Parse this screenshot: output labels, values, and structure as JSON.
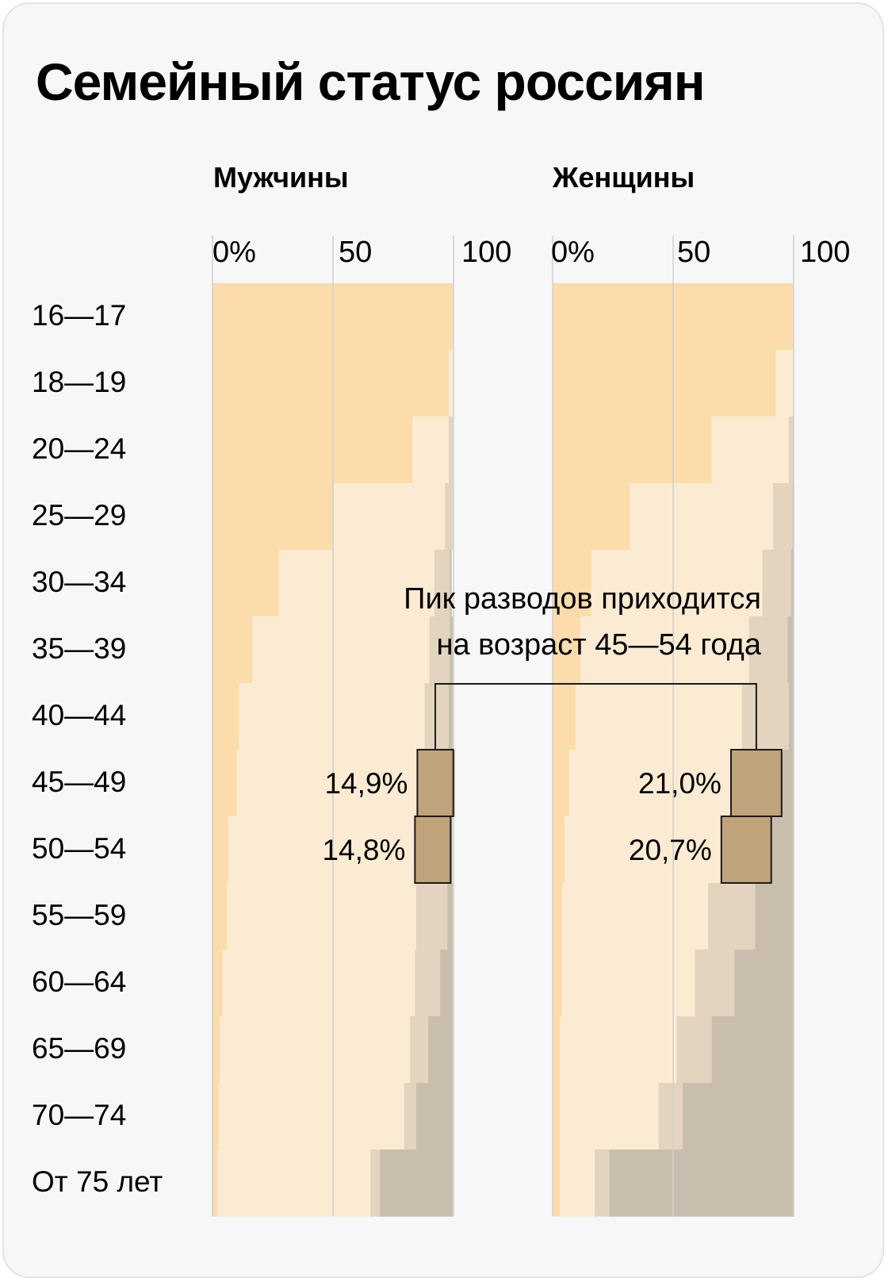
{
  "title": "Семейный статус россиян",
  "annotation": {
    "line1": "Пик разводов приходится",
    "line2": "на возраст 45—54 года"
  },
  "colors": {
    "never_married": "#fcdcab",
    "married": "#fcebd3",
    "divorced": "#e2d4be",
    "widowed": "#c9bdad",
    "highlight": "#c1a37b",
    "gridline": "#cfcfcf"
  },
  "chart_data": {
    "type": "bar",
    "stacked": true,
    "orientation": "horizontal",
    "categories": [
      "16—17",
      "18—19",
      "20—24",
      "25—29",
      "30—34",
      "35—39",
      "40—44",
      "45—49",
      "50—54",
      "55—59",
      "60—64",
      "65—69",
      "70—74",
      "От 75 лет"
    ],
    "xlim": [
      0,
      100
    ],
    "x_ticks": [
      "0%",
      "50",
      "100"
    ],
    "panels": [
      {
        "title": "Мужчины",
        "series": [
          {
            "values": [
              99.5,
              98,
              83,
              50,
              27.5,
              16.5,
              11,
              10,
              6.5,
              6,
              4,
              3,
              2.5,
              2
            ]
          },
          {
            "values": [
              0,
              1.5,
              15,
              46.5,
              64.5,
              73.5,
              77,
              75,
              77.5,
              78.5,
              80,
              79,
              77,
              63.5
            ]
          },
          {
            "values": [
              0,
              0,
              1.5,
              3,
              6.5,
              8.5,
              10,
              14.9,
              14.8,
              13,
              10.5,
              7.5,
              5,
              4
            ]
          },
          {
            "values": [
              0,
              0,
              0,
              0,
              0.5,
              1,
              1.5,
              0.5,
              0.5,
              2,
              5,
              10,
              15,
              30
            ]
          }
        ],
        "highlights": [
          {
            "category": "45—49",
            "label": "14,9%"
          },
          {
            "category": "50—54",
            "label": "14,8%"
          }
        ]
      },
      {
        "title": "Женщины",
        "series": [
          {
            "values": [
              99.5,
              92.5,
              66,
              32,
              16,
              11.5,
              9.5,
              7,
              5,
              4,
              4,
              3,
              3,
              3
            ]
          },
          {
            "values": [
              0,
              7.5,
              32,
              59.5,
              71,
              70,
              69,
              67,
              65,
              60.5,
              55,
              48.5,
              41,
              14.5
            ]
          },
          {
            "values": [
              0,
              0,
              2,
              8,
              12,
              16,
              19.5,
              21,
              20.7,
              19.5,
              16.5,
              14.5,
              10,
              6
            ]
          },
          {
            "values": [
              0,
              0,
              0,
              0.5,
              1,
              2.5,
              2,
              5,
              9.3,
              16,
              24.5,
              34,
              46,
              76.5
            ]
          }
        ],
        "highlights": [
          {
            "category": "45—49",
            "label": "21,0%"
          },
          {
            "category": "50—54",
            "label": "20,7%"
          }
        ]
      }
    ]
  }
}
